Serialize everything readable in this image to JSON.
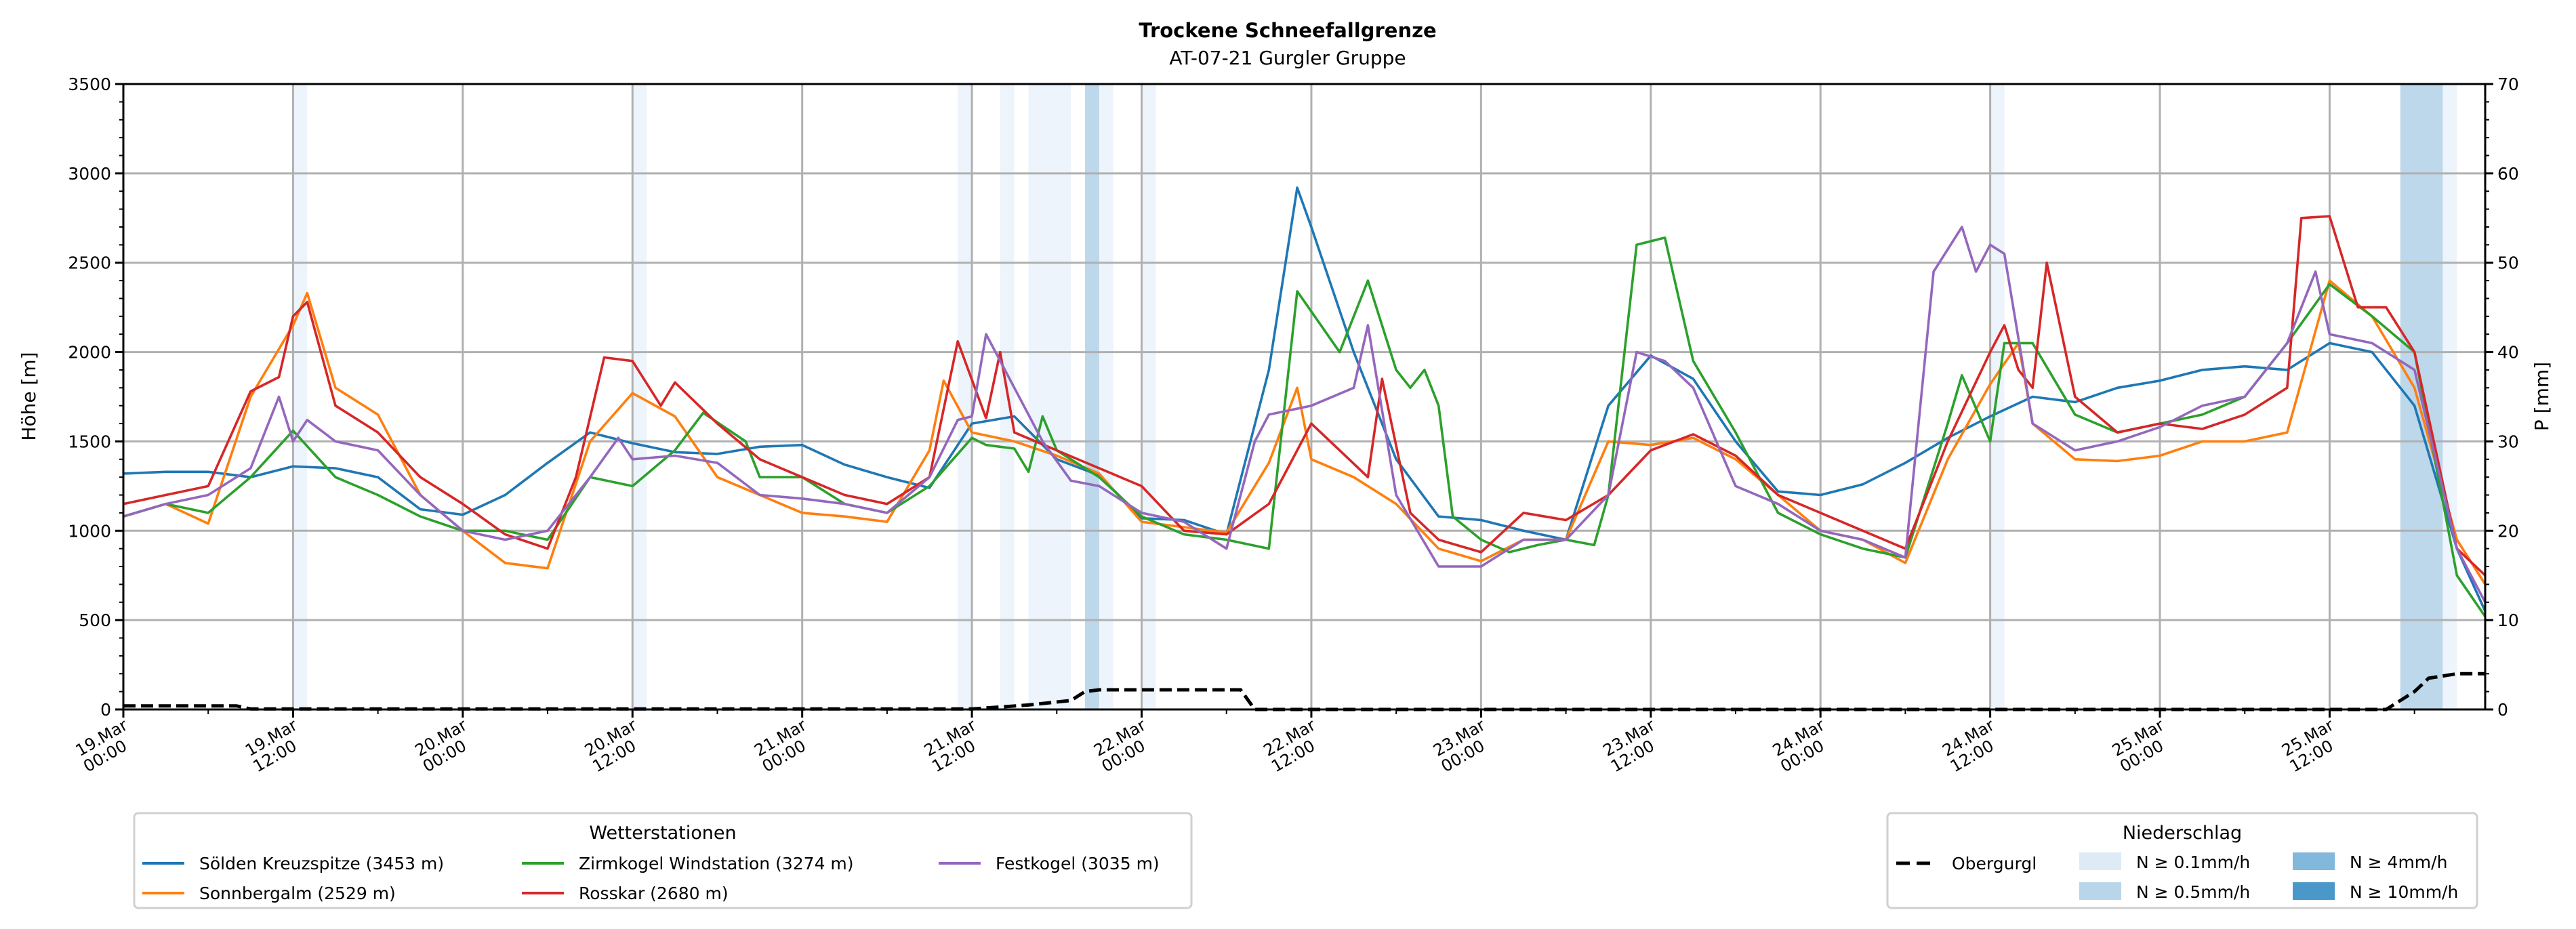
{
  "chart_data": {
    "type": "line",
    "title": "Trockene Schneefallgrenze",
    "subtitle": "AT-07-21 Gurgler Gruppe",
    "ylabel": "Höhe [m]",
    "ylabel_right": "P [mm]",
    "ylim": [
      0,
      3500
    ],
    "ylim_right": [
      0,
      70
    ],
    "yticks": [
      0,
      500,
      1000,
      1500,
      2000,
      2500,
      3000,
      3500
    ],
    "yticks_right": [
      0,
      10,
      20,
      30,
      40,
      50,
      60,
      70
    ],
    "x_unit": "hours since 19.Mar 00:00",
    "xlim": [
      0,
      167
    ],
    "xticks": [
      {
        "t": 0,
        "l1": "19.Mar",
        "l2": "00:00"
      },
      {
        "t": 12,
        "l1": "19.Mar",
        "l2": "12:00"
      },
      {
        "t": 24,
        "l1": "20.Mar",
        "l2": "00:00"
      },
      {
        "t": 36,
        "l1": "20.Mar",
        "l2": "12:00"
      },
      {
        "t": 48,
        "l1": "21.Mar",
        "l2": "00:00"
      },
      {
        "t": 60,
        "l1": "21.Mar",
        "l2": "12:00"
      },
      {
        "t": 72,
        "l1": "22.Mar",
        "l2": "00:00"
      },
      {
        "t": 84,
        "l1": "22.Mar",
        "l2": "12:00"
      },
      {
        "t": 96,
        "l1": "23.Mar",
        "l2": "00:00"
      },
      {
        "t": 108,
        "l1": "23.Mar",
        "l2": "12:00"
      },
      {
        "t": 120,
        "l1": "24.Mar",
        "l2": "00:00"
      },
      {
        "t": 132,
        "l1": "24.Mar",
        "l2": "12:00"
      },
      {
        "t": 144,
        "l1": "25.Mar",
        "l2": "00:00"
      },
      {
        "t": 156,
        "l1": "25.Mar",
        "l2": "12:00"
      }
    ],
    "grid": true,
    "series": [
      {
        "name": "Sölden Kreuzspitze (3453 m)",
        "color": "#1f77b4",
        "t": [
          0,
          3,
          6,
          9,
          12,
          15,
          18,
          21,
          24,
          27,
          30,
          33,
          36,
          39,
          42,
          45,
          48,
          51,
          54,
          57,
          60,
          63,
          66,
          69,
          72,
          75,
          78,
          81,
          83,
          84,
          87,
          90,
          93,
          96,
          99,
          102,
          105,
          108,
          111,
          114,
          117,
          120,
          123,
          126,
          129,
          132,
          135,
          138,
          141,
          144,
          147,
          150,
          153,
          156,
          159,
          162,
          165,
          167
        ],
        "v": [
          1320,
          1330,
          1330,
          1300,
          1360,
          1350,
          1300,
          1120,
          1090,
          1200,
          1380,
          1550,
          1490,
          1440,
          1430,
          1470,
          1480,
          1370,
          1300,
          1240,
          1600,
          1640,
          1400,
          1310,
          1070,
          1060,
          980,
          1900,
          2920,
          2700,
          2000,
          1400,
          1080,
          1060,
          1000,
          950,
          1700,
          1980,
          1850,
          1500,
          1220,
          1200,
          1260,
          1380,
          1520,
          1640,
          1750,
          1720,
          1800,
          1840,
          1900,
          1920,
          1900,
          2050,
          2000,
          1700,
          900,
          550
        ]
      },
      {
        "name": "Sonnbergalm (2529 m)",
        "color": "#ff7f0e",
        "t": [
          0,
          3,
          6,
          9,
          12,
          13,
          15,
          18,
          21,
          24,
          27,
          30,
          33,
          36,
          39,
          42,
          45,
          48,
          51,
          54,
          57,
          58,
          60,
          63,
          66,
          69,
          72,
          75,
          78,
          81,
          83,
          84,
          87,
          90,
          93,
          96,
          99,
          102,
          105,
          108,
          111,
          114,
          117,
          120,
          123,
          126,
          129,
          132,
          134,
          135,
          138,
          141,
          144,
          147,
          150,
          153,
          156,
          159,
          162,
          165,
          167
        ],
        "v": [
          1080,
          1150,
          1040,
          1750,
          2150,
          2330,
          1800,
          1650,
          1200,
          1000,
          820,
          790,
          1500,
          1770,
          1640,
          1300,
          1200,
          1100,
          1080,
          1050,
          1450,
          1840,
          1550,
          1500,
          1420,
          1320,
          1050,
          1020,
          990,
          1380,
          1800,
          1400,
          1300,
          1150,
          900,
          830,
          950,
          950,
          1500,
          1480,
          1520,
          1400,
          1200,
          1000,
          950,
          820,
          1400,
          1820,
          2050,
          1600,
          1400,
          1390,
          1420,
          1500,
          1500,
          1550,
          2400,
          2200,
          1800,
          950,
          700
        ]
      },
      {
        "name": "Zirmkogel Windstation (3274 m)",
        "color": "#2ca02c",
        "t": [
          0,
          3,
          6,
          9,
          12,
          15,
          18,
          21,
          24,
          27,
          30,
          33,
          36,
          39,
          41,
          44,
          45,
          48,
          51,
          54,
          57,
          60,
          61,
          63,
          64,
          65,
          66,
          69,
          72,
          75,
          78,
          81,
          83,
          86,
          88,
          90,
          91,
          92,
          93,
          94,
          96,
          98,
          100,
          102,
          104,
          105,
          107,
          109,
          111,
          114,
          117,
          120,
          123,
          126,
          129,
          130,
          132,
          133,
          135,
          138,
          141,
          144,
          147,
          150,
          153,
          156,
          159,
          162,
          165,
          167
        ],
        "v": [
          1080,
          1150,
          1100,
          1300,
          1560,
          1300,
          1200,
          1080,
          1000,
          1000,
          950,
          1300,
          1250,
          1450,
          1660,
          1500,
          1300,
          1300,
          1150,
          1100,
          1250,
          1520,
          1480,
          1460,
          1330,
          1640,
          1450,
          1300,
          1080,
          980,
          950,
          900,
          2340,
          2000,
          2400,
          1900,
          1800,
          1900,
          1700,
          1080,
          950,
          880,
          920,
          950,
          920,
          1200,
          2600,
          2640,
          1950,
          1550,
          1100,
          980,
          900,
          850,
          1600,
          1870,
          1500,
          2050,
          2050,
          1650,
          1550,
          1600,
          1650,
          1750,
          2050,
          2380,
          2200,
          2000,
          750,
          520
        ]
      },
      {
        "name": "Rosskar (2680 m)",
        "color": "#d62728",
        "t": [
          0,
          3,
          6,
          9,
          11,
          12,
          13,
          15,
          18,
          21,
          24,
          27,
          30,
          32,
          34,
          36,
          38,
          39,
          42,
          45,
          48,
          51,
          54,
          57,
          59,
          61,
          62,
          63,
          66,
          69,
          72,
          75,
          78,
          81,
          84,
          86,
          88,
          89,
          91,
          93,
          96,
          99,
          102,
          105,
          108,
          111,
          114,
          117,
          120,
          123,
          126,
          129,
          132,
          133,
          134,
          135,
          136,
          138,
          141,
          144,
          147,
          150,
          153,
          154,
          156,
          158,
          160,
          162,
          165,
          167
        ],
        "v": [
          1150,
          1200,
          1250,
          1780,
          1860,
          2200,
          2280,
          1700,
          1550,
          1300,
          1150,
          980,
          900,
          1300,
          1970,
          1950,
          1700,
          1830,
          1600,
          1400,
          1300,
          1200,
          1150,
          1300,
          2060,
          1630,
          2000,
          1550,
          1450,
          1350,
          1250,
          1000,
          980,
          1150,
          1600,
          1450,
          1300,
          1850,
          1100,
          950,
          880,
          1100,
          1060,
          1200,
          1450,
          1540,
          1420,
          1200,
          1100,
          1000,
          900,
          1500,
          2000,
          2150,
          1900,
          1800,
          2500,
          1750,
          1550,
          1600,
          1570,
          1650,
          1800,
          2750,
          2760,
          2250,
          2250,
          2000,
          900,
          750
        ]
      },
      {
        "name": "Festkogel (3035 m)",
        "color": "#9467bd",
        "t": [
          0,
          3,
          6,
          9,
          11,
          12,
          13,
          15,
          18,
          21,
          24,
          27,
          30,
          33,
          35,
          36,
          39,
          42,
          45,
          48,
          51,
          54,
          57,
          59,
          60,
          61,
          63,
          65,
          67,
          69,
          72,
          75,
          78,
          80,
          81,
          84,
          87,
          88,
          90,
          93,
          96,
          99,
          102,
          105,
          107,
          109,
          111,
          114,
          117,
          120,
          123,
          126,
          128,
          130,
          131,
          132,
          133,
          135,
          138,
          141,
          144,
          147,
          150,
          153,
          155,
          156,
          159,
          162,
          165,
          167
        ],
        "v": [
          1080,
          1150,
          1200,
          1350,
          1750,
          1500,
          1620,
          1500,
          1450,
          1200,
          1000,
          950,
          1000,
          1300,
          1520,
          1400,
          1420,
          1380,
          1200,
          1180,
          1150,
          1100,
          1300,
          1620,
          1640,
          2100,
          1800,
          1500,
          1280,
          1250,
          1100,
          1050,
          900,
          1500,
          1650,
          1700,
          1800,
          2150,
          1200,
          800,
          800,
          950,
          950,
          1200,
          2000,
          1950,
          1800,
          1250,
          1150,
          1000,
          950,
          850,
          2450,
          2700,
          2450,
          2600,
          2550,
          1600,
          1450,
          1500,
          1580,
          1700,
          1750,
          2050,
          2450,
          2100,
          2050,
          1900,
          900,
          600
        ]
      }
    ],
    "precip_obergurgl": {
      "name": "Obergurgl",
      "unit": "mm",
      "t": [
        0,
        8,
        9,
        60,
        64,
        67,
        68,
        69,
        79,
        80,
        160,
        162,
        163,
        165,
        167
      ],
      "v": [
        0.4,
        0.4,
        0.05,
        0.05,
        0.5,
        1,
        2,
        2.2,
        2.2,
        0,
        0,
        2,
        3.5,
        4,
        4
      ]
    },
    "precip_bands": [
      {
        "t0": 12,
        "t1": 13,
        "level": 0
      },
      {
        "t0": 36,
        "t1": 37,
        "level": 0
      },
      {
        "t0": 59,
        "t1": 60,
        "level": 0
      },
      {
        "t0": 62,
        "t1": 63,
        "level": 0
      },
      {
        "t0": 64,
        "t1": 67,
        "level": 0
      },
      {
        "t0": 68,
        "t1": 69,
        "level": 1
      },
      {
        "t0": 69,
        "t1": 70,
        "level": 0
      },
      {
        "t0": 72,
        "t1": 73,
        "level": 0
      },
      {
        "t0": 132,
        "t1": 133,
        "level": 0
      },
      {
        "t0": 161,
        "t1": 164,
        "level": 1
      },
      {
        "t0": 164,
        "t1": 165,
        "level": 0
      }
    ],
    "precip_levels": [
      {
        "label": "N ≥ 0.1mm/h",
        "color": "#deebf7"
      },
      {
        "label": "N ≥ 0.5mm/h",
        "color": "#b9d5ea"
      },
      {
        "label": "N ≥ 4mm/h",
        "color": "#82b8dc"
      },
      {
        "label": "N ≥ 10mm/h",
        "color": "#4a97c9"
      }
    ],
    "legend_stations": {
      "title": "Wetterstationen",
      "placement": "bottom-left"
    },
    "legend_precip": {
      "title": "Niederschlag",
      "placement": "bottom-right"
    }
  }
}
